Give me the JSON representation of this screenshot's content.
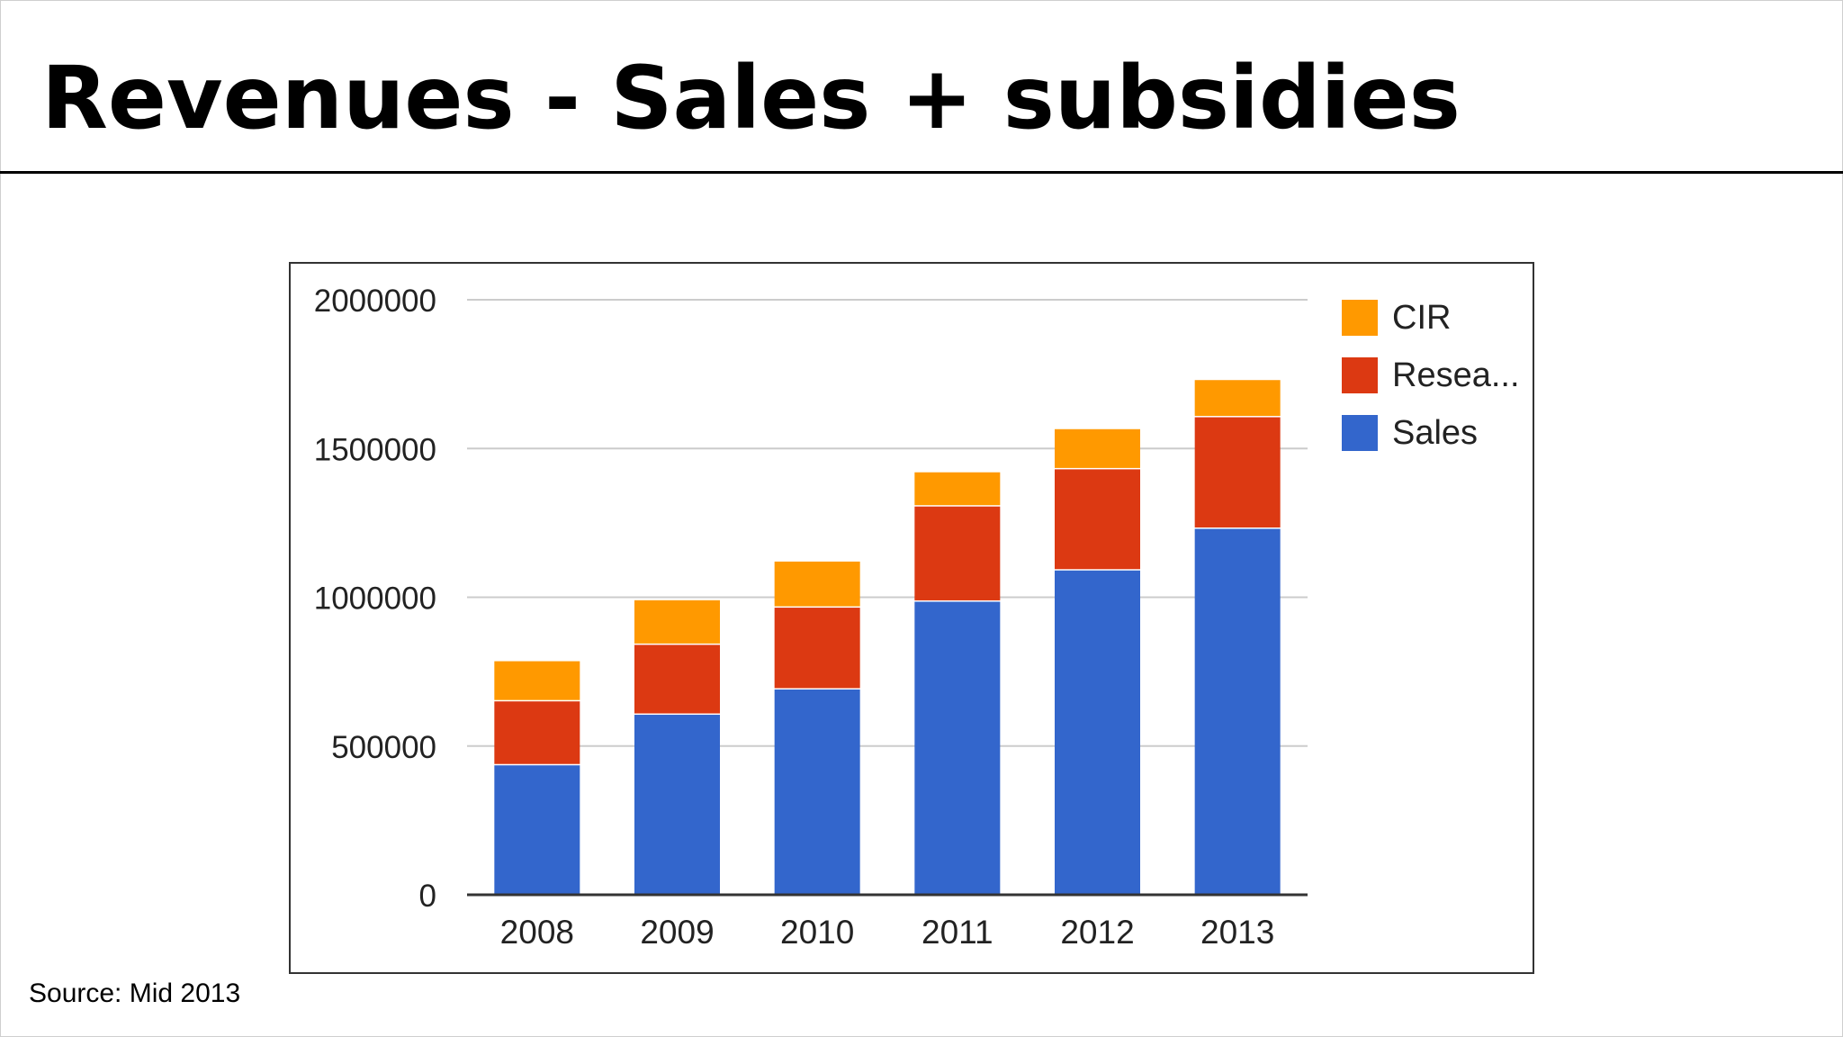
{
  "slide": {
    "title": "Revenues - Sales + subsidies",
    "source_note": "Source: Mid 2013"
  },
  "colors": {
    "Sales": "#3366cc",
    "Research": "#dc3912",
    "CIR": "#ff9900",
    "gridline": "#cccccc",
    "axis": "#333333",
    "text": "#222222"
  },
  "chart_data": {
    "type": "bar",
    "stacked": true,
    "title": "",
    "xlabel": "",
    "ylabel": "",
    "categories": [
      "2008",
      "2009",
      "2010",
      "2011",
      "2012",
      "2013"
    ],
    "series": [
      {
        "name": "Sales",
        "values": [
          435000,
          605000,
          690000,
          985000,
          1090000,
          1230000
        ]
      },
      {
        "name": "Resea...",
        "values": [
          215000,
          235000,
          275000,
          320000,
          340000,
          375000
        ]
      },
      {
        "name": "CIR",
        "values": [
          135000,
          150000,
          155000,
          115000,
          135000,
          125000
        ]
      }
    ],
    "legend": {
      "position": "right",
      "order": [
        "CIR",
        "Resea...",
        "Sales"
      ]
    },
    "yticks": [
      "0",
      "500000",
      "1000000",
      "1500000",
      "2000000"
    ],
    "ylim": [
      0,
      2000000
    ],
    "grid": true
  }
}
